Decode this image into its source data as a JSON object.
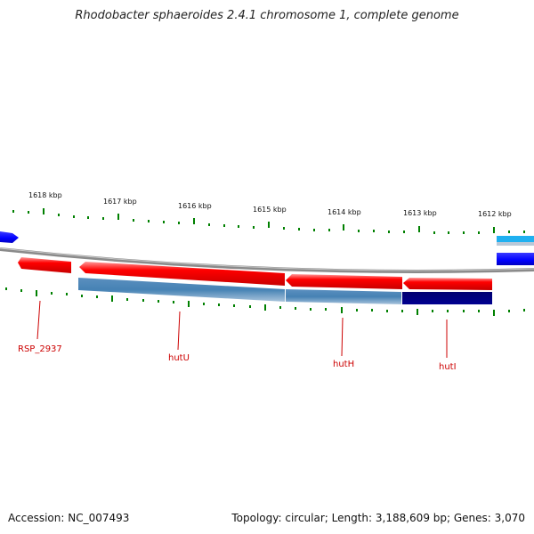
{
  "title": "Rhodobacter sphaeroides 2.4.1 chromosome 1, complete genome",
  "accession_text": "Accession: NC_007493",
  "summary_text": "Topology: circular; Length: 3,188,609 bp; Genes: 3,070",
  "scale_labels": [
    "1618 kbp",
    "1617 kbp",
    "1616 kbp",
    "1615 kbp",
    "1614 kbp",
    "1613 kbp",
    "1612 kbp"
  ],
  "gene_labels": [
    "RSP_2937",
    "hutU",
    "hutH",
    "hutI"
  ],
  "colors": {
    "forward_gene": "#ff0000",
    "reverse_cds": "#4682b4",
    "reverse_cds_dark": "#000080",
    "neighbor_gene": "#0000ff",
    "neighbor_gene_light": "#00bfff",
    "backbone": "#808080",
    "tick": "#008000",
    "label": "#cc0000"
  }
}
